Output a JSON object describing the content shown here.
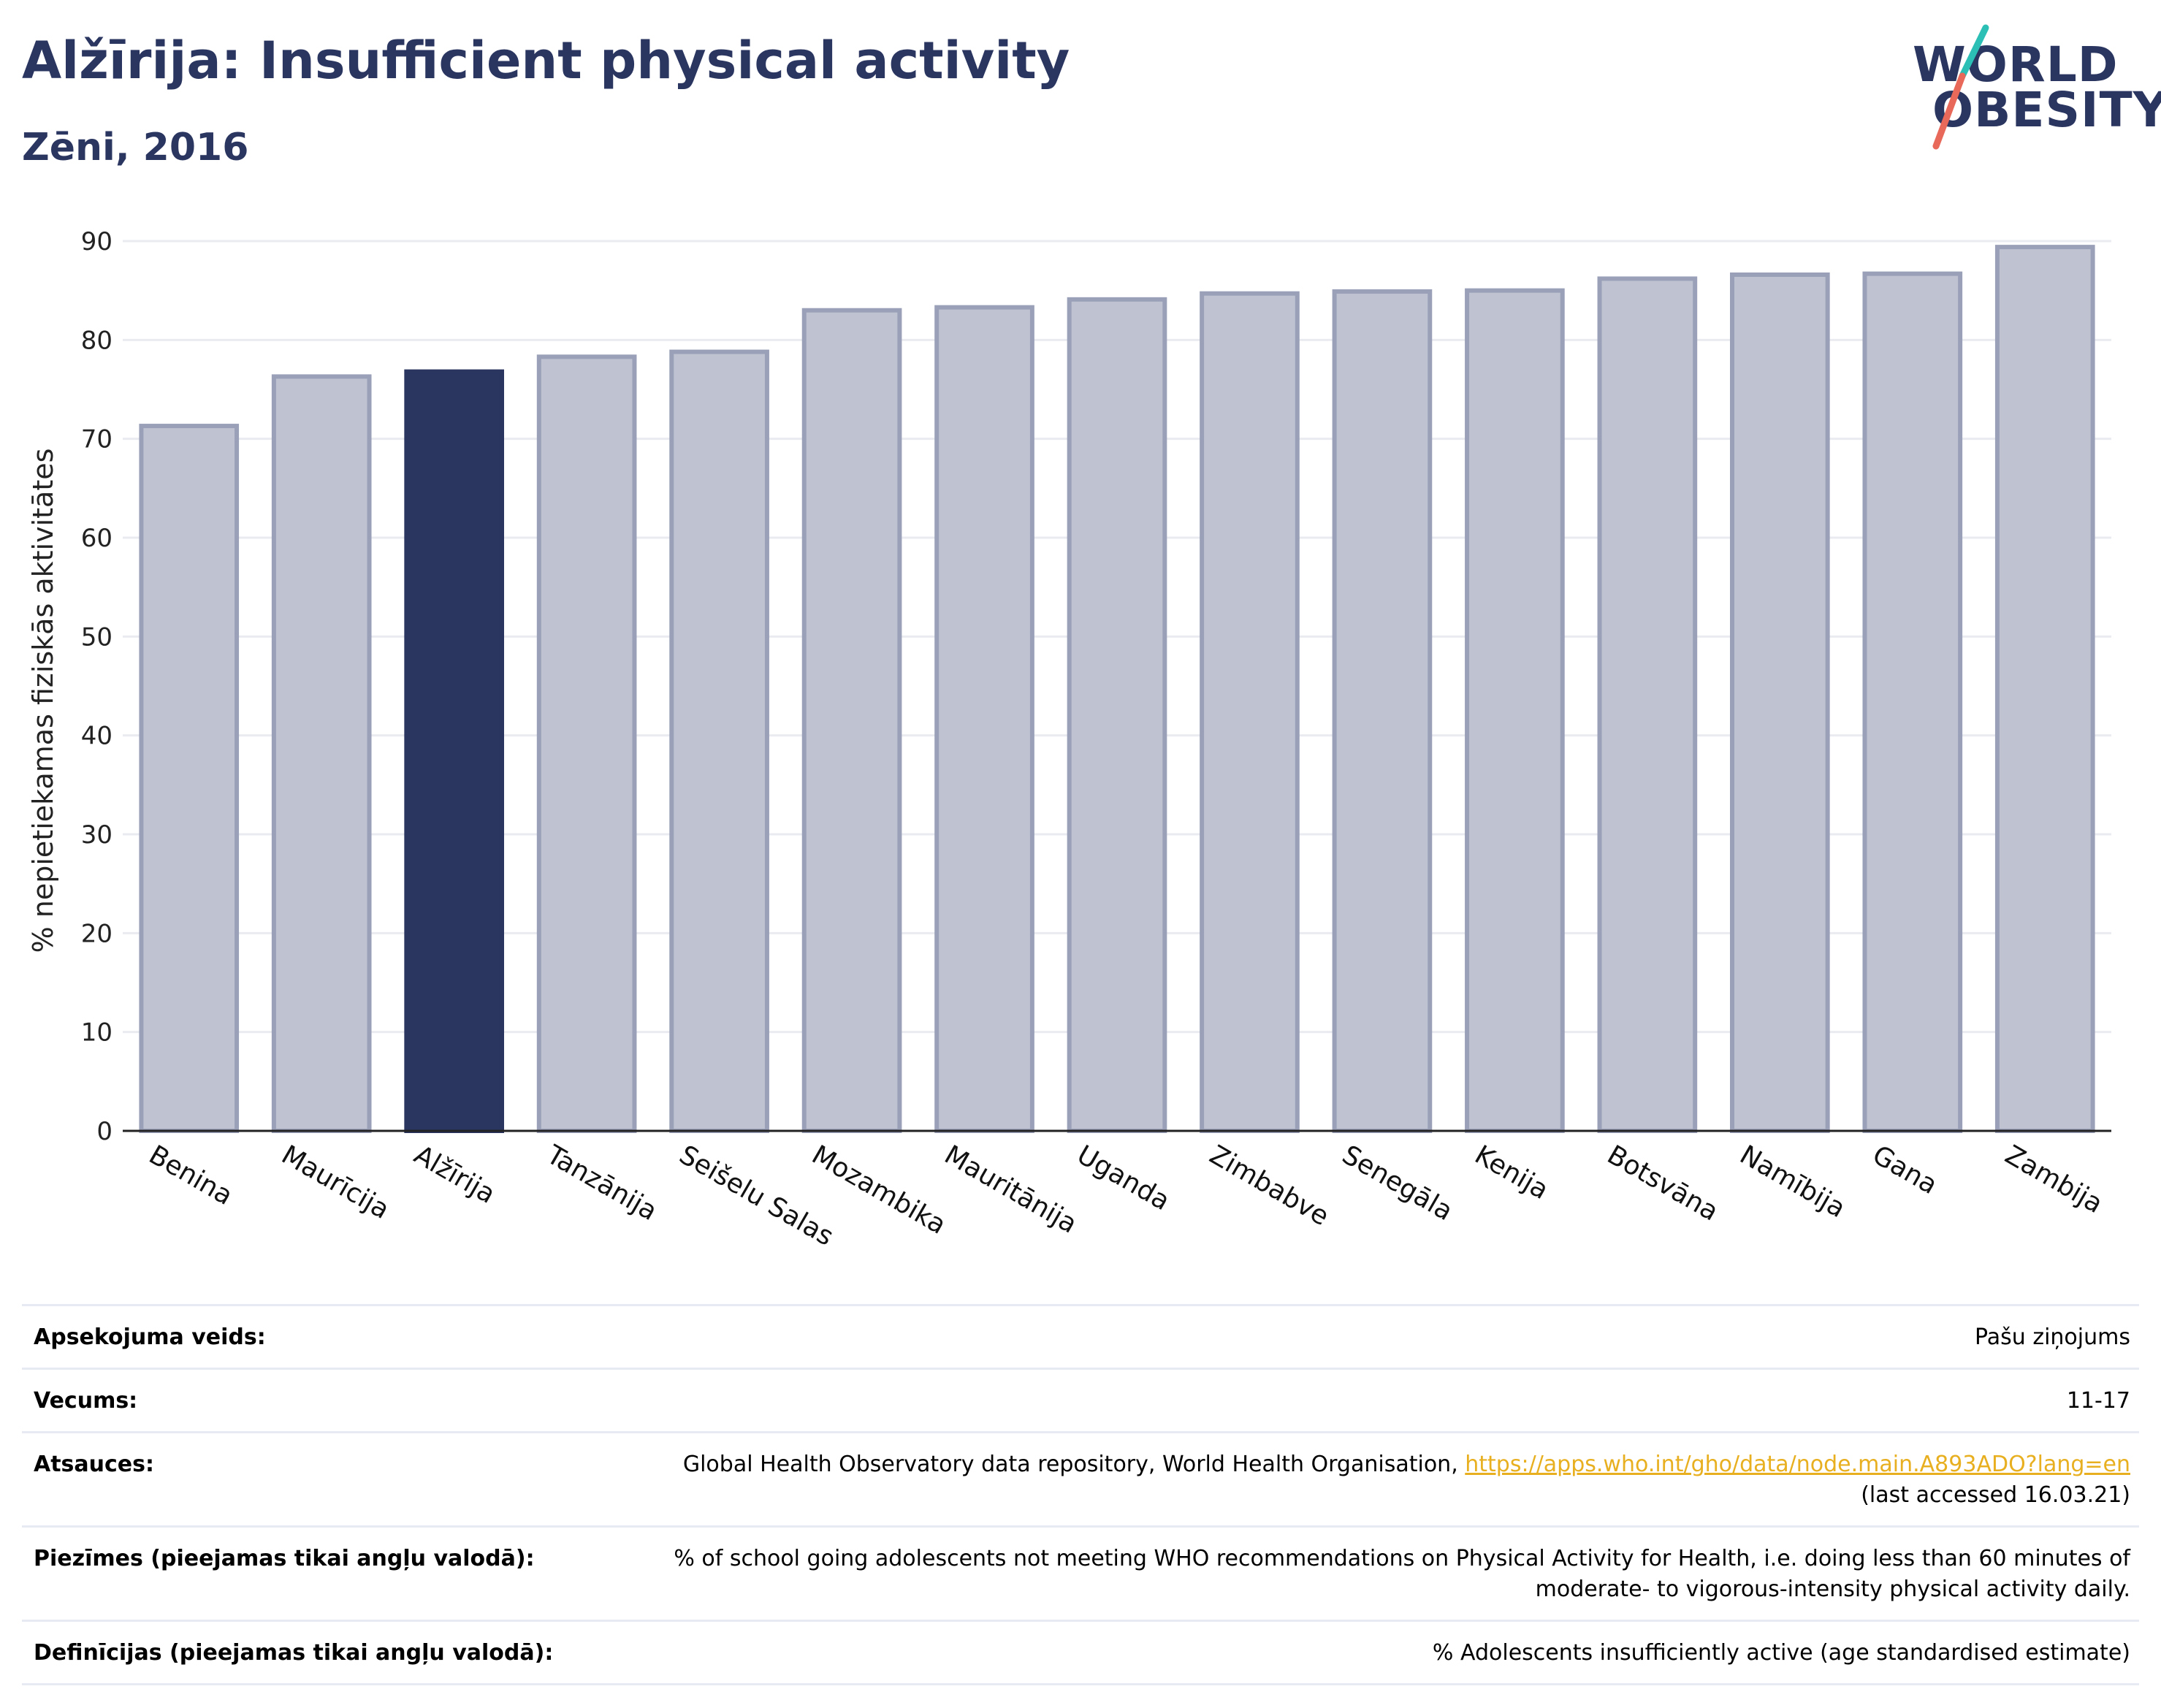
{
  "header": {
    "title": "Alžīrija: Insufficient physical activity",
    "subtitle": "Zēni, 2016"
  },
  "logo": {
    "line1": "WORLD",
    "line2": "OBESITY",
    "accent_colors": [
      "#2bbfb5",
      "#e8685a"
    ]
  },
  "colors": {
    "highlight": "#2a3560",
    "bar_fill": "#bfc3d1",
    "bar_border": "#9aa0b8",
    "gridline": "#e9ebf1",
    "link": "#e8b020"
  },
  "chart_data": {
    "type": "bar",
    "ylabel": "% nepietiekamas fiziskās aktivitātes",
    "ylim": [
      0,
      90
    ],
    "yticks": [
      0,
      10,
      20,
      30,
      40,
      50,
      60,
      70,
      80,
      90
    ],
    "grid": true,
    "highlight_category": "Alžīrija",
    "categories": [
      "Benina",
      "Maurīcija",
      "Alžīrija",
      "Tanzānija",
      "Seišelu Salas",
      "Mozambika",
      "Mauritānija",
      "Uganda",
      "Zimbabve",
      "Senegāla",
      "Kenija",
      "Botsvāna",
      "Namībija",
      "Gana",
      "Zambija"
    ],
    "values": [
      71.3,
      76.3,
      76.8,
      78.3,
      78.8,
      83.0,
      83.3,
      84.1,
      84.7,
      84.9,
      85.0,
      86.2,
      86.6,
      86.7,
      89.4
    ]
  },
  "info": {
    "survey_label": "Apsekojuma veids:",
    "survey_value": "Pašu ziņojums",
    "age_label": "Vecums:",
    "age_value": "11-17",
    "refs_label": "Atsauces:",
    "refs_text": "Global Health Observatory data repository, World Health Organisation, ",
    "refs_link": "https://apps.who.int/gho/data/node.main.A893ADO?lang=en",
    "refs_accessed": "(last accessed 16.03.21)",
    "notes_label": "Piezīmes (pieejamas tikai angļu valodā):",
    "notes_value": "% of school going adolescents not meeting WHO recommendations on Physical Activity for Health, i.e. doing less than 60 minutes of moderate- to vigorous-intensity physical activity daily.",
    "defs_label": "Definīcijas (pieejamas tikai angļu valodā):",
    "defs_value": "% Adolescents insufficiently active (age standardised estimate)"
  }
}
